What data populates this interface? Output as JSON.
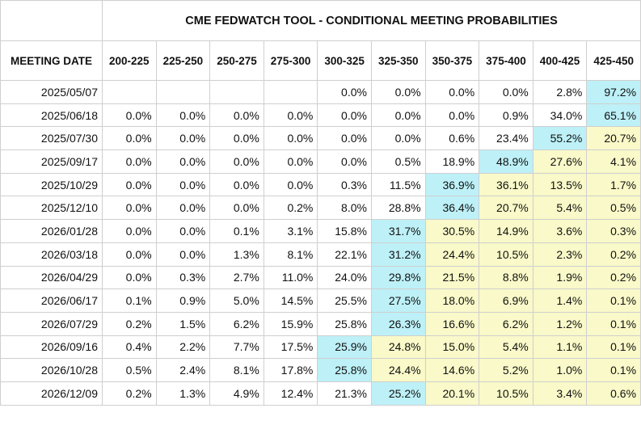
{
  "title": "CME FEDWATCH TOOL - CONDITIONAL MEETING PROBABILITIES",
  "header_label": "MEETING DATE",
  "ranges": [
    "200-225",
    "225-250",
    "250-275",
    "275-300",
    "300-325",
    "325-350",
    "350-375",
    "375-400",
    "400-425",
    "425-450"
  ],
  "colors": {
    "highlight_max": "#bdf0f7",
    "highlight_high": "#f9f9c9",
    "border": "#cfcfcf"
  },
  "rows": [
    {
      "date": "2025/05/07",
      "values": [
        "",
        "",
        "",
        "",
        "0.0%",
        "0.0%",
        "0.0%",
        "0.0%",
        "2.8%",
        "97.2%"
      ],
      "shade": [
        "e",
        "e",
        "e",
        "e",
        "n",
        "n",
        "n",
        "n",
        "n",
        "h"
      ]
    },
    {
      "date": "2025/06/18",
      "values": [
        "0.0%",
        "0.0%",
        "0.0%",
        "0.0%",
        "0.0%",
        "0.0%",
        "0.0%",
        "0.9%",
        "34.0%",
        "65.1%"
      ],
      "shade": [
        "n",
        "n",
        "n",
        "n",
        "n",
        "n",
        "n",
        "n",
        "n",
        "h"
      ]
    },
    {
      "date": "2025/07/30",
      "values": [
        "0.0%",
        "0.0%",
        "0.0%",
        "0.0%",
        "0.0%",
        "0.0%",
        "0.6%",
        "23.4%",
        "55.2%",
        "20.7%"
      ],
      "shade": [
        "n",
        "n",
        "n",
        "n",
        "n",
        "n",
        "n",
        "n",
        "h",
        "m"
      ]
    },
    {
      "date": "2025/09/17",
      "values": [
        "0.0%",
        "0.0%",
        "0.0%",
        "0.0%",
        "0.0%",
        "0.5%",
        "18.9%",
        "48.9%",
        "27.6%",
        "4.1%"
      ],
      "shade": [
        "n",
        "n",
        "n",
        "n",
        "n",
        "n",
        "n",
        "h",
        "m",
        "m"
      ]
    },
    {
      "date": "2025/10/29",
      "values": [
        "0.0%",
        "0.0%",
        "0.0%",
        "0.0%",
        "0.3%",
        "11.5%",
        "36.9%",
        "36.1%",
        "13.5%",
        "1.7%"
      ],
      "shade": [
        "n",
        "n",
        "n",
        "n",
        "n",
        "n",
        "h",
        "m",
        "m",
        "m"
      ]
    },
    {
      "date": "2025/12/10",
      "values": [
        "0.0%",
        "0.0%",
        "0.0%",
        "0.2%",
        "8.0%",
        "28.8%",
        "36.4%",
        "20.7%",
        "5.4%",
        "0.5%"
      ],
      "shade": [
        "n",
        "n",
        "n",
        "n",
        "n",
        "n",
        "h",
        "m",
        "m",
        "m"
      ]
    },
    {
      "date": "2026/01/28",
      "values": [
        "0.0%",
        "0.0%",
        "0.1%",
        "3.1%",
        "15.8%",
        "31.7%",
        "30.5%",
        "14.9%",
        "3.6%",
        "0.3%"
      ],
      "shade": [
        "n",
        "n",
        "n",
        "n",
        "n",
        "h",
        "m",
        "m",
        "m",
        "m"
      ]
    },
    {
      "date": "2026/03/18",
      "values": [
        "0.0%",
        "0.0%",
        "1.3%",
        "8.1%",
        "22.1%",
        "31.2%",
        "24.4%",
        "10.5%",
        "2.3%",
        "0.2%"
      ],
      "shade": [
        "n",
        "n",
        "n",
        "n",
        "n",
        "h",
        "m",
        "m",
        "m",
        "m"
      ]
    },
    {
      "date": "2026/04/29",
      "values": [
        "0.0%",
        "0.3%",
        "2.7%",
        "11.0%",
        "24.0%",
        "29.8%",
        "21.5%",
        "8.8%",
        "1.9%",
        "0.2%"
      ],
      "shade": [
        "n",
        "n",
        "n",
        "n",
        "n",
        "h",
        "m",
        "m",
        "m",
        "m"
      ]
    },
    {
      "date": "2026/06/17",
      "values": [
        "0.1%",
        "0.9%",
        "5.0%",
        "14.5%",
        "25.5%",
        "27.5%",
        "18.0%",
        "6.9%",
        "1.4%",
        "0.1%"
      ],
      "shade": [
        "n",
        "n",
        "n",
        "n",
        "n",
        "h",
        "m",
        "m",
        "m",
        "m"
      ]
    },
    {
      "date": "2026/07/29",
      "values": [
        "0.2%",
        "1.5%",
        "6.2%",
        "15.9%",
        "25.8%",
        "26.3%",
        "16.6%",
        "6.2%",
        "1.2%",
        "0.1%"
      ],
      "shade": [
        "n",
        "n",
        "n",
        "n",
        "n",
        "h",
        "m",
        "m",
        "m",
        "m"
      ]
    },
    {
      "date": "2026/09/16",
      "values": [
        "0.4%",
        "2.2%",
        "7.7%",
        "17.5%",
        "25.9%",
        "24.8%",
        "15.0%",
        "5.4%",
        "1.1%",
        "0.1%"
      ],
      "shade": [
        "n",
        "n",
        "n",
        "n",
        "h",
        "m",
        "m",
        "m",
        "m",
        "m"
      ]
    },
    {
      "date": "2026/10/28",
      "values": [
        "0.5%",
        "2.4%",
        "8.1%",
        "17.8%",
        "25.8%",
        "24.4%",
        "14.6%",
        "5.2%",
        "1.0%",
        "0.1%"
      ],
      "shade": [
        "n",
        "n",
        "n",
        "n",
        "h",
        "m",
        "m",
        "m",
        "m",
        "m"
      ]
    },
    {
      "date": "2026/12/09",
      "values": [
        "0.2%",
        "1.3%",
        "4.9%",
        "12.4%",
        "21.3%",
        "25.2%",
        "20.1%",
        "10.5%",
        "3.4%",
        "0.6%"
      ],
      "shade": [
        "n",
        "n",
        "n",
        "n",
        "n",
        "h",
        "m",
        "m",
        "m",
        "m"
      ]
    }
  ]
}
